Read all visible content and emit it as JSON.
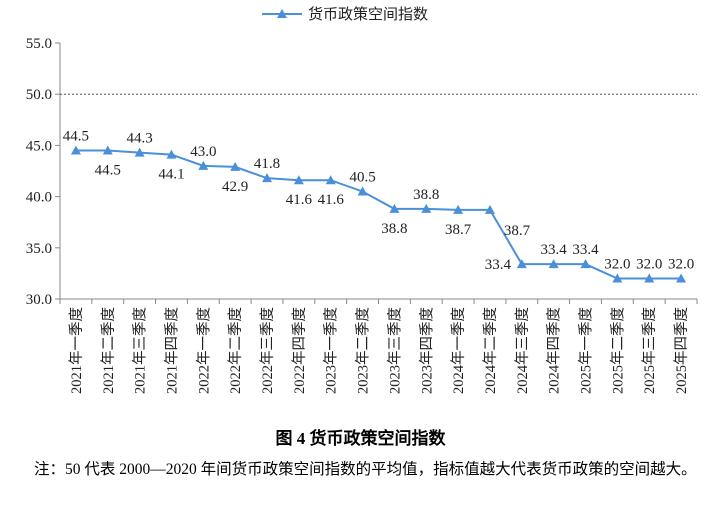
{
  "chart_data": {
    "type": "line",
    "categories": [
      "2021年一季度",
      "2021年二季度",
      "2021年三季度",
      "2021年四季度",
      "2022年一季度",
      "2022年二季度",
      "2022年三季度",
      "2022年四季度",
      "2023年一季度",
      "2023年二季度",
      "2023年三季度",
      "2023年四季度",
      "2024年一季度",
      "2024年二季度",
      "2024年三季度",
      "2024年四季度",
      "2025年一季度",
      "2025年二季度",
      "2025年三季度",
      "2025年四季度"
    ],
    "series": [
      {
        "name": "货币政策空间指数",
        "values": [
          44.5,
          44.5,
          44.3,
          44.1,
          43.0,
          42.9,
          41.8,
          41.6,
          41.6,
          40.5,
          38.8,
          38.8,
          38.7,
          38.7,
          33.4,
          33.4,
          33.4,
          32.0,
          32.0,
          32.0
        ],
        "color": "#4a90d9"
      }
    ],
    "ylim": [
      30,
      55
    ],
    "yticks": [
      "30.0",
      "35.0",
      "40.0",
      "45.0",
      "50.0",
      "55.0"
    ],
    "reference_line": {
      "value": 50,
      "style": "dotted"
    },
    "legend_position": "top",
    "data_labels": true
  },
  "caption": {
    "title": "图 4  货币政策空间指数",
    "note": "注：50 代表 2000—2020 年间货币政策空间指数的平均值，指标值越大代表货币政策的空间越大。"
  }
}
